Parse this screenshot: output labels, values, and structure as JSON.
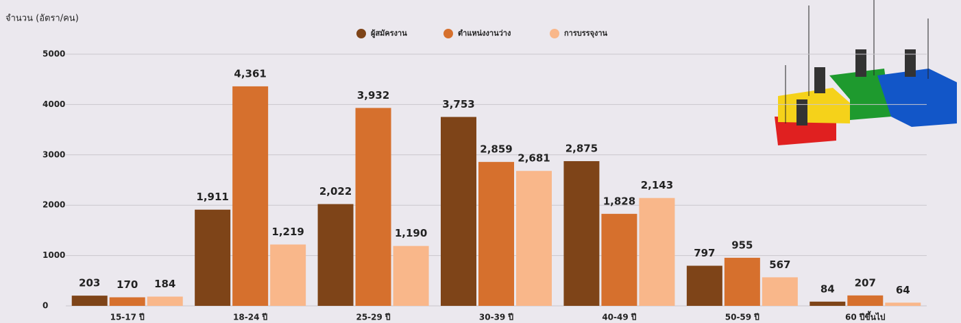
{
  "chart_data": {
    "type": "bar",
    "y_label": "จำนวน (อัตรา/คน)",
    "categories": [
      "15-17 ปี",
      "18-24 ปี",
      "25-29 ปี",
      "30-39 ปี",
      "40-49 ปี",
      "50-59 ปี",
      "60 ปีขึ้นไป"
    ],
    "series": [
      {
        "name": "ผู้สมัครงาน",
        "color": "#7e4418",
        "values": [
          203,
          1911,
          2022,
          3753,
          2875,
          797,
          84
        ],
        "value_labels": [
          "203",
          "1,911",
          "2,022",
          "3,753",
          "2,875",
          "797",
          "84"
        ]
      },
      {
        "name": "ตำแหน่งงานว่าง",
        "color": "#d6702d",
        "values": [
          170,
          4361,
          3932,
          2859,
          1828,
          955,
          207
        ],
        "value_labels": [
          "170",
          "4,361",
          "3,932",
          "2,859",
          "1,828",
          "955",
          "207"
        ]
      },
      {
        "name": "การบรรจุงาน",
        "color": "#f9b78a",
        "values": [
          184,
          1219,
          1190,
          2681,
          2143,
          567,
          64
        ],
        "value_labels": [
          "184",
          "1,219",
          "1,190",
          "2,681",
          "2,143",
          "567",
          "64"
        ]
      }
    ],
    "ylim": [
      0,
      5000
    ],
    "yticks": [
      0,
      1000,
      2000,
      3000,
      4000,
      5000
    ],
    "grid": true,
    "legend": "top"
  }
}
